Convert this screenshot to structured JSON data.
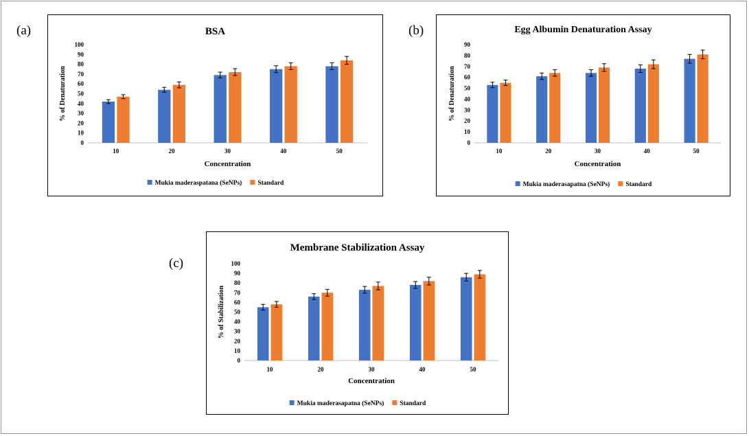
{
  "panel_labels": [
    "(a)",
    "(b)",
    "(c)"
  ],
  "colors": {
    "series1": "#4472c4",
    "series2": "#ed7d31",
    "frame": "#5aa6c7"
  },
  "chart_data": [
    {
      "type": "bar",
      "title": "BSA",
      "xlabel": "Concentration",
      "ylabel": "% of Denaturation",
      "categories": [
        "10",
        "20",
        "30",
        "40",
        "50"
      ],
      "ylim": [
        0,
        100
      ],
      "yticks": [
        0,
        10,
        20,
        30,
        40,
        50,
        60,
        70,
        80,
        90,
        100
      ],
      "grid": false,
      "legend_position": "bottom",
      "series": [
        {
          "name": "Mukia maderaspatana (SeNPs)",
          "values": [
            42,
            54,
            69,
            75,
            78
          ],
          "errors": [
            2,
            2.5,
            3,
            3.5,
            3.5
          ]
        },
        {
          "name": "Standard",
          "values": [
            47,
            59,
            72,
            78,
            84
          ],
          "errors": [
            2,
            3,
            3.5,
            3.5,
            4
          ]
        }
      ]
    },
    {
      "type": "bar",
      "title": "Egg Albumin Denaturation Assay",
      "xlabel": "Concentration",
      "ylabel": "% of Denaturation",
      "categories": [
        "10",
        "20",
        "30",
        "40",
        "50"
      ],
      "ylim": [
        0,
        90
      ],
      "yticks": [
        0,
        10,
        20,
        30,
        40,
        50,
        60,
        70,
        80,
        90
      ],
      "yticklabels": [
        "0",
        "10",
        "20",
        "30",
        "40",
        "50",
        "60",
        "70",
        "80",
        "90"
      ],
      "grid": false,
      "legend_position": "bottom",
      "series": [
        {
          "name": "Mukia maderasapatna (SeNPs)",
          "values": [
            53,
            61,
            64,
            68,
            77
          ],
          "errors": [
            2.5,
            3,
            3,
            3.5,
            4
          ]
        },
        {
          "name": "Standard",
          "values": [
            55,
            64,
            69,
            72,
            81
          ],
          "errors": [
            2.5,
            3,
            3.5,
            4,
            4
          ]
        }
      ]
    },
    {
      "type": "bar",
      "title": "Membrane Stabilization Assay",
      "xlabel": "Concentration",
      "ylabel": "% of Stabilization",
      "categories": [
        "10",
        "20",
        "30",
        "40",
        "50"
      ],
      "ylim": [
        0,
        100
      ],
      "yticks": [
        0,
        10,
        20,
        30,
        40,
        50,
        60,
        70,
        80,
        90,
        100
      ],
      "grid": false,
      "legend_position": "bottom",
      "series": [
        {
          "name": "Mukia maderasapatna (SeNPs)",
          "values": [
            55,
            66,
            73,
            78,
            86
          ],
          "errors": [
            3,
            3,
            3.5,
            3.5,
            4
          ]
        },
        {
          "name": "Standard",
          "values": [
            58,
            70,
            77,
            82,
            89
          ],
          "errors": [
            3,
            3.5,
            4,
            4,
            4
          ]
        }
      ]
    }
  ]
}
